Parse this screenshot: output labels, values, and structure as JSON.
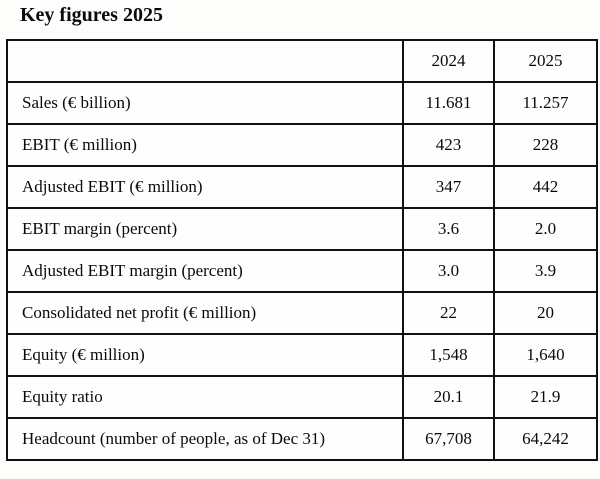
{
  "title": "Key figures 2025",
  "table": {
    "columns": [
      "",
      "2024",
      "2025"
    ],
    "rows": [
      {
        "label": "Sales (€ billion)",
        "values": [
          "11.681",
          "11.257"
        ]
      },
      {
        "label": "EBIT (€ million)",
        "values": [
          "423",
          "228"
        ]
      },
      {
        "label": "Adjusted EBIT (€ million)",
        "values": [
          "347",
          "442"
        ]
      },
      {
        "label": "EBIT margin (percent)",
        "values": [
          "3.6",
          "2.0"
        ]
      },
      {
        "label": "Adjusted EBIT margin (percent)",
        "values": [
          "3.0",
          "3.9"
        ]
      },
      {
        "label": "Consolidated net profit (€ million)",
        "values": [
          "22",
          "20"
        ]
      },
      {
        "label": "Equity (€ million)",
        "values": [
          "1,548",
          "1,640"
        ]
      },
      {
        "label": "Equity ratio",
        "values": [
          "20.1",
          "21.9"
        ]
      },
      {
        "label": "Headcount (number of people, as of Dec 31)",
        "values": [
          "67,708",
          "64,242"
        ]
      }
    ]
  }
}
